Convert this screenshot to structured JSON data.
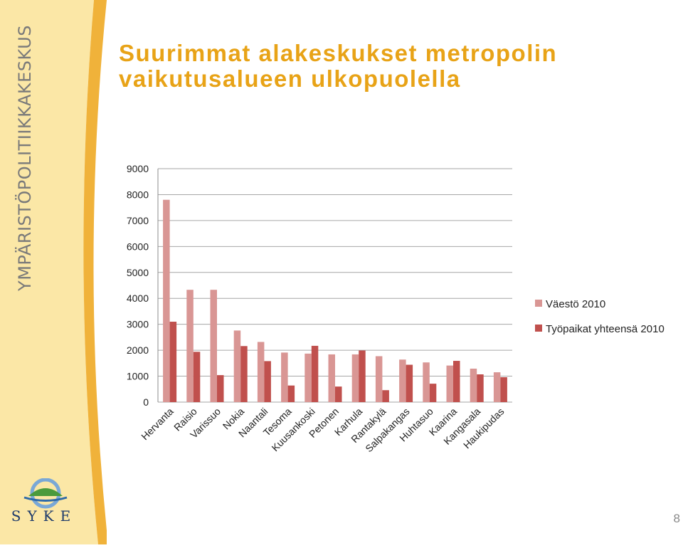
{
  "sidebar": {
    "vertical_text": "YMPÄRISTÖPOLITIIKKAKESKUS",
    "logo_text": "SYKE"
  },
  "slide": {
    "title_line1": "Suurimmat alakeskukset metropolin",
    "title_line2": "vaikutusalueen ulkopuolella",
    "page_number": "8"
  },
  "colors": {
    "title": "#e8a317",
    "sidebar_light": "#fbe7a6",
    "sidebar_stripe": "#f0b23a",
    "series1": "#d99694",
    "series2": "#c0504d"
  },
  "chart_data": {
    "type": "bar",
    "categories": [
      "Hervanta",
      "Raisio",
      "Varissuo",
      "Nokia",
      "Naantali",
      "Tesoma",
      "Kuusankoski",
      "Petonen",
      "Karhula",
      "Rantakylä",
      "Salpakangas",
      "Huhtasuo",
      "Kaarina",
      "Kangasala",
      "Haukipudas"
    ],
    "series": [
      {
        "name": "Väestö 2010",
        "values": [
          7800,
          4330,
          4330,
          2760,
          2320,
          1910,
          1870,
          1840,
          1840,
          1770,
          1640,
          1530,
          1410,
          1290,
          1150
        ]
      },
      {
        "name": "Työpaikat yhteensä 2010",
        "values": [
          3100,
          1940,
          1040,
          2160,
          1580,
          640,
          2170,
          600,
          1990,
          460,
          1440,
          710,
          1590,
          1070,
          960
        ]
      }
    ],
    "yticks": [
      0,
      1000,
      2000,
      3000,
      4000,
      5000,
      6000,
      7000,
      8000,
      9000
    ],
    "ylim": [
      0,
      9000
    ],
    "grid": true,
    "legend_position": "right",
    "title": "",
    "xlabel": "",
    "ylabel": ""
  }
}
